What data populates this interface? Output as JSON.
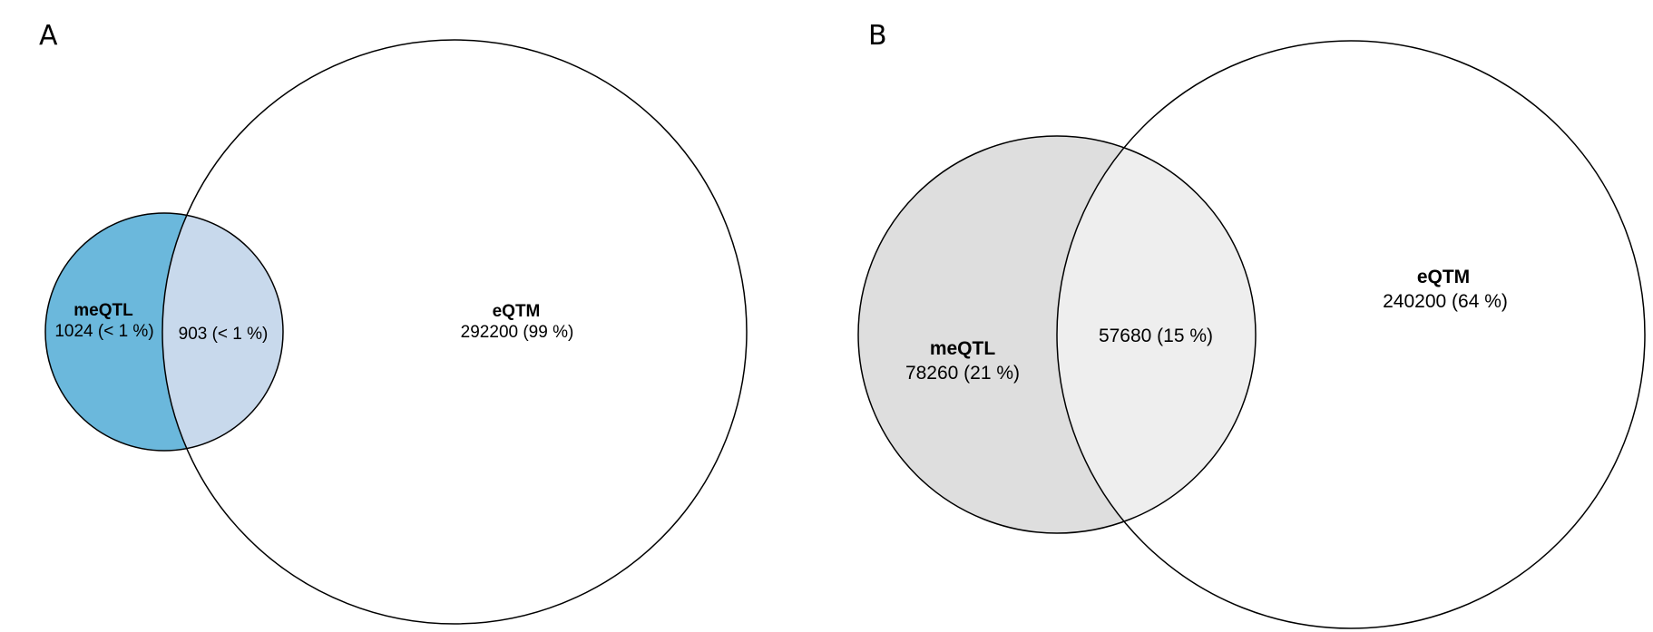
{
  "panels": [
    {
      "label": "A",
      "sets": {
        "meqtl": {
          "name": "meQTL",
          "only_count": "1024 (< 1 %)"
        },
        "eqtm": {
          "name": "eQTM",
          "only_count": "292200 (99 %)"
        }
      },
      "overlap_count": "903 (< 1 %)",
      "colors": {
        "meqtl_only": "#6bb8dc",
        "overlap": "#c8d9ec",
        "eqtm_only": "#ffffff",
        "outline": "#000000"
      }
    },
    {
      "label": "B",
      "sets": {
        "meqtl": {
          "name": "meQTL",
          "only_count": "78260 (21 %)"
        },
        "eqtm": {
          "name": "eQTM",
          "only_count": "240200 (64 %)"
        }
      },
      "overlap_count": "57680 (15 %)",
      "colors": {
        "meqtl_only": "#dedede",
        "overlap": "#eeeeee",
        "eqtm_only": "#ffffff",
        "outline": "#000000"
      }
    }
  ]
}
